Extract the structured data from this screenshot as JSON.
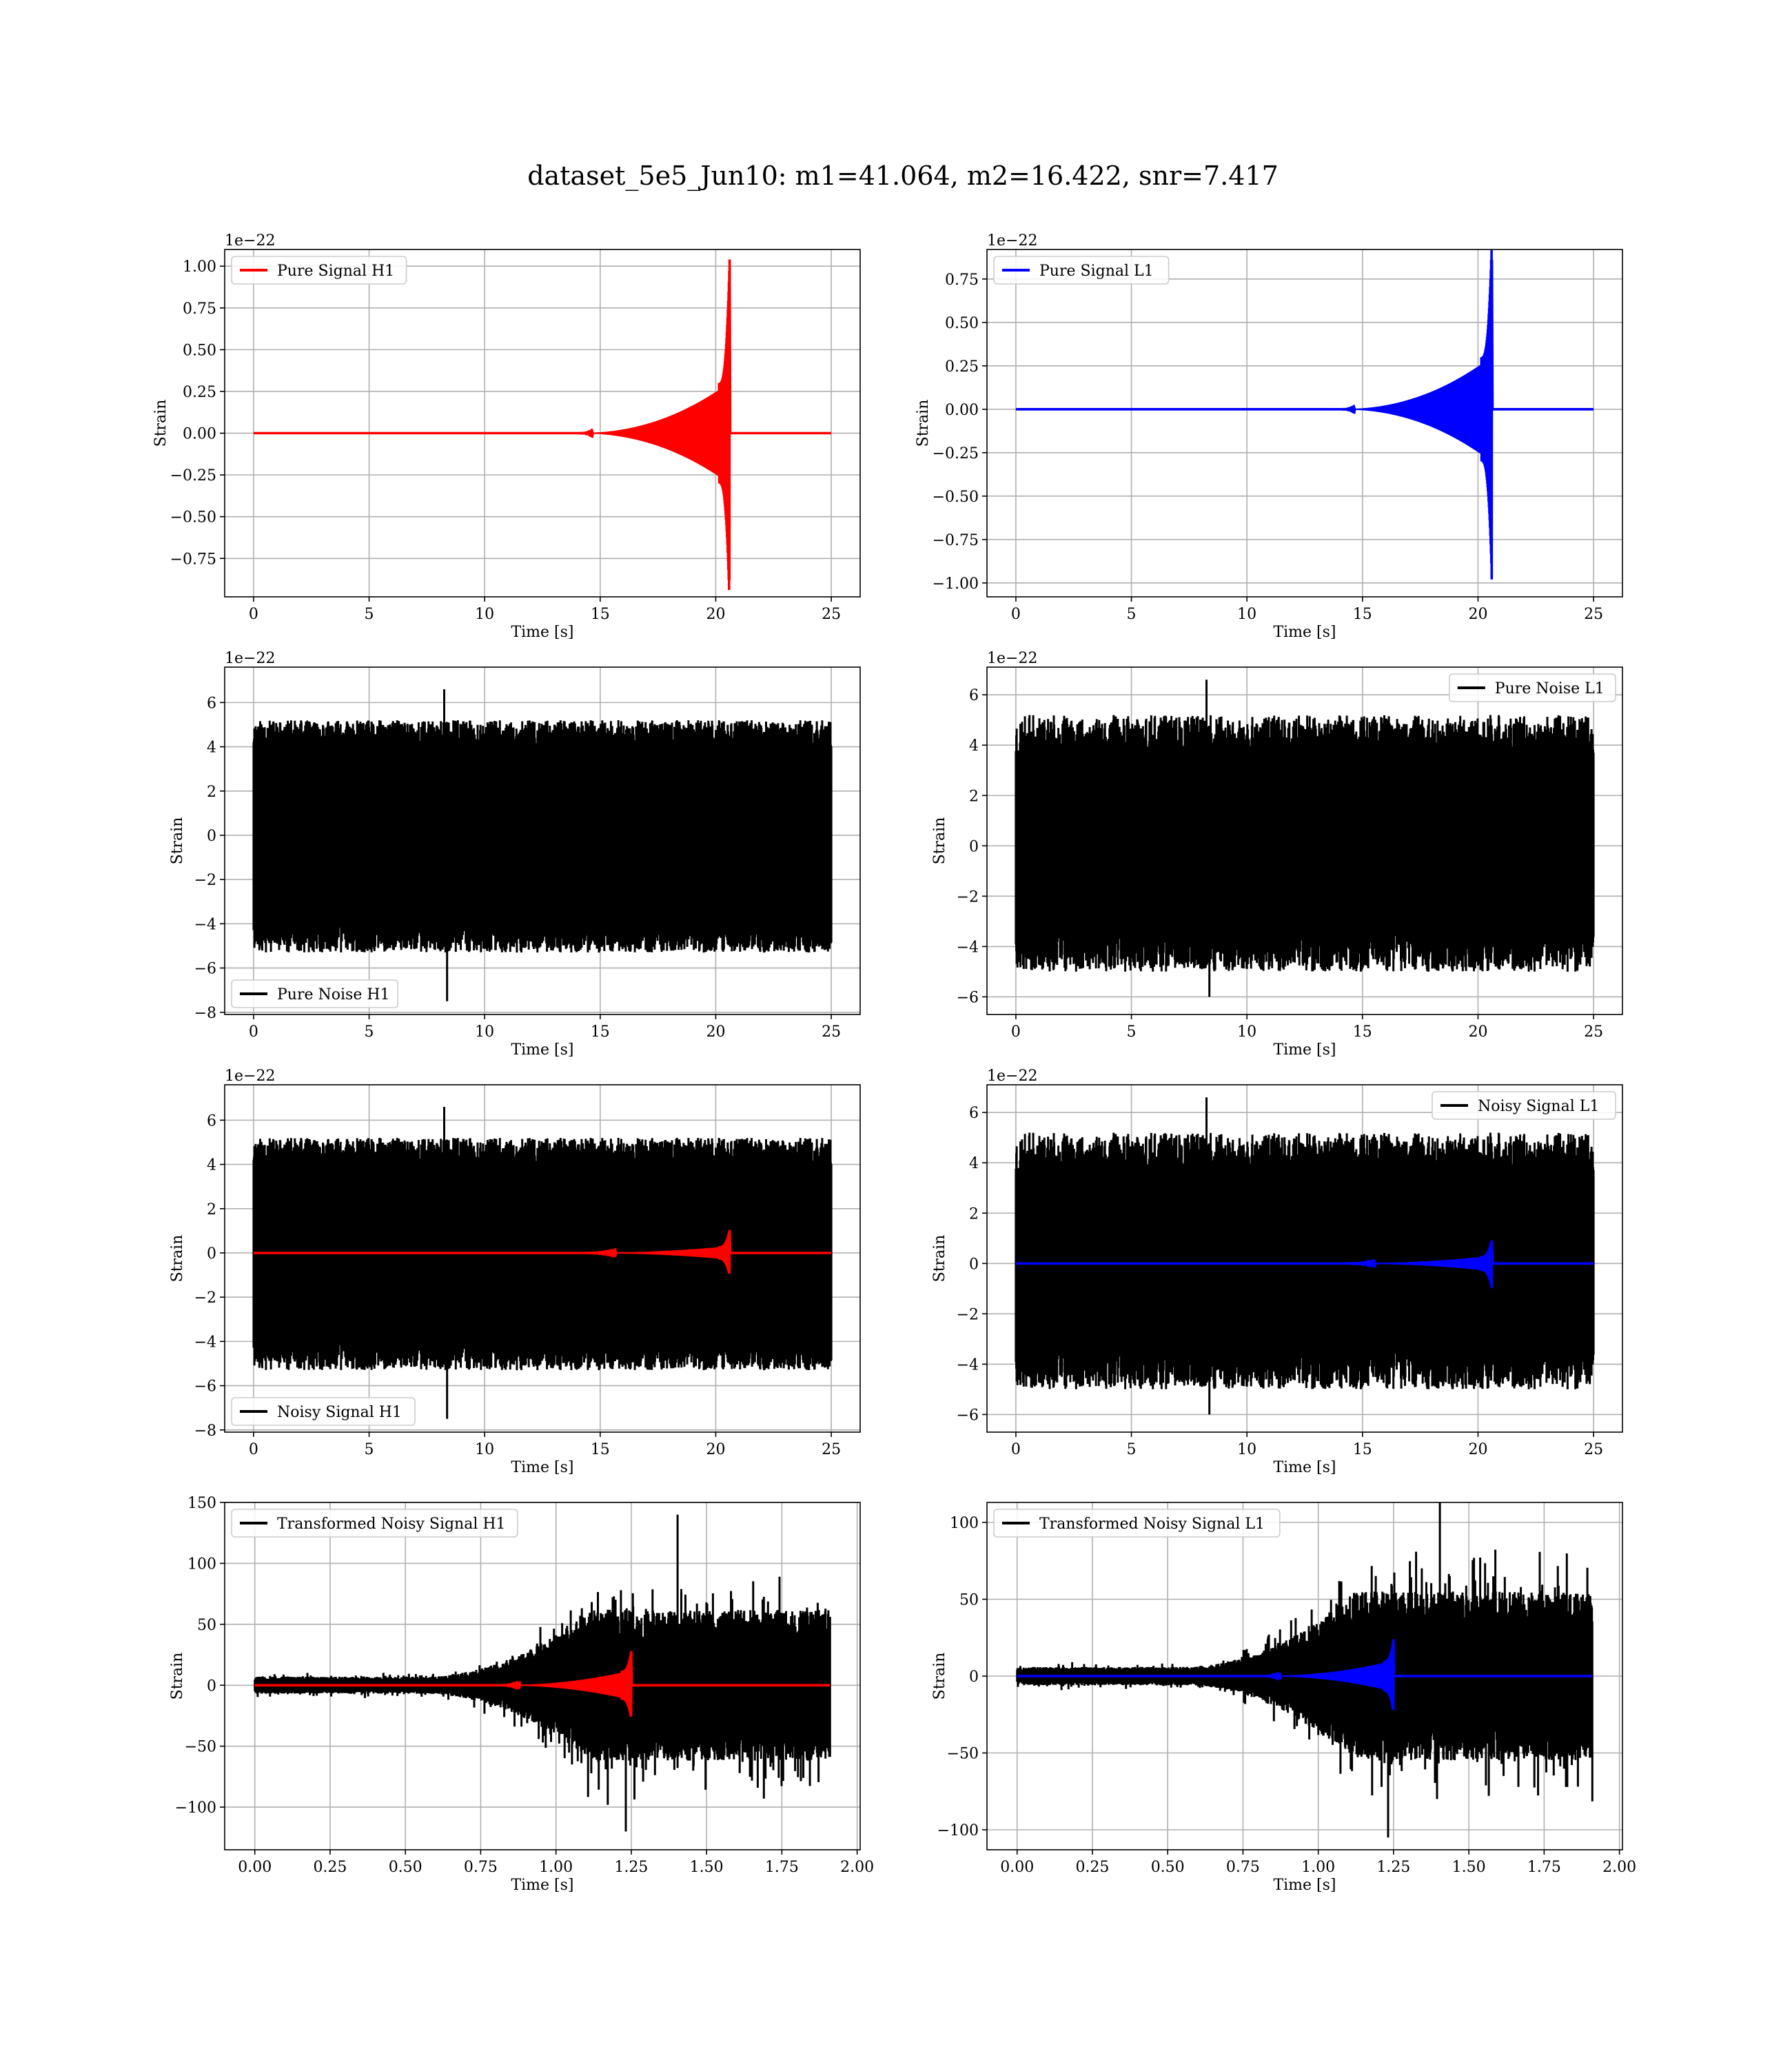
{
  "title": "dataset_5e5_Jun10: m1=41.064, m2=16.422, snr=7.417",
  "colors": {
    "h1_signal": "#ff0000",
    "l1_signal": "#0000ff",
    "noise": "#000000",
    "grid": "#b0b0b0"
  },
  "chart_data": [
    {
      "id": "pure-signal-h1",
      "type": "line",
      "grid": true,
      "legend_placement": "upper left",
      "xlabel": "Time [s]",
      "ylabel": "Strain",
      "y_offset_label": "1e−22",
      "xlim": [
        -1.25,
        26.25
      ],
      "ylim": [
        -0.98,
        1.1
      ],
      "xticks": [
        0,
        5,
        10,
        15,
        20,
        25
      ],
      "xtick_labels": [
        "0",
        "5",
        "10",
        "15",
        "20",
        "25"
      ],
      "yticks": [
        -0.75,
        -0.5,
        -0.25,
        0.0,
        0.25,
        0.5,
        0.75,
        1.0
      ],
      "ytick_labels": [
        "−0.75",
        "−0.50",
        "−0.25",
        "0.00",
        "0.25",
        "0.50",
        "0.75",
        "1.00"
      ],
      "series": [
        {
          "name": "Pure Signal H1",
          "color": "#ff0000",
          "kind": "chirp",
          "t_end": 25,
          "merger_time": 20.6,
          "chirp_start": 14,
          "x_start": 0,
          "peak_pos": 1.04,
          "peak_neg": -0.88,
          "pre_merger_amp": 0.3
        }
      ]
    },
    {
      "id": "pure-signal-l1",
      "type": "line",
      "grid": true,
      "legend_placement": "upper left",
      "xlabel": "Time [s]",
      "ylabel": "Strain",
      "y_offset_label": "1e−22",
      "xlim": [
        -1.25,
        26.25
      ],
      "ylim": [
        -1.08,
        0.92
      ],
      "xticks": [
        0,
        5,
        10,
        15,
        20,
        25
      ],
      "xtick_labels": [
        "0",
        "5",
        "10",
        "15",
        "20",
        "25"
      ],
      "yticks": [
        -1.0,
        -0.75,
        -0.5,
        -0.25,
        0.0,
        0.25,
        0.5,
        0.75
      ],
      "ytick_labels": [
        "−1.00",
        "−0.75",
        "−0.50",
        "−0.25",
        "0.00",
        "0.25",
        "0.50",
        "0.75"
      ],
      "series": [
        {
          "name": "Pure Signal L1",
          "color": "#0000ff",
          "kind": "chirp",
          "t_end": 25,
          "merger_time": 20.6,
          "chirp_start": 14,
          "x_start": 0,
          "peak_pos": 0.86,
          "peak_neg": -0.98,
          "pre_merger_amp": 0.3
        }
      ]
    },
    {
      "id": "pure-noise-h1",
      "type": "line",
      "grid": true,
      "legend_placement": "lower left",
      "xlabel": "Time [s]",
      "ylabel": "Strain",
      "y_offset_label": "1e−22",
      "xlim": [
        -1.25,
        26.25
      ],
      "ylim": [
        -8.1,
        7.6
      ],
      "xticks": [
        0,
        5,
        10,
        15,
        20,
        25
      ],
      "xtick_labels": [
        "0",
        "5",
        "10",
        "15",
        "20",
        "25"
      ],
      "yticks": [
        -8,
        -6,
        -4,
        -2,
        0,
        2,
        4,
        6
      ],
      "ytick_labels": [
        "−8",
        "−6",
        "−4",
        "−2",
        "0",
        "2",
        "4",
        "6"
      ],
      "series": [
        {
          "name": "Pure Noise H1",
          "color": "#000000",
          "kind": "noise",
          "t_end": 25,
          "x_start": 0,
          "band": 3.9,
          "spike_pos": 5.2,
          "spike_neg": -5.3,
          "max": 6.6,
          "min": -7.5,
          "seed": 11
        }
      ]
    },
    {
      "id": "pure-noise-l1",
      "type": "line",
      "grid": true,
      "legend_placement": "upper right",
      "xlabel": "Time [s]",
      "ylabel": "Strain",
      "y_offset_label": "1e−22",
      "xlim": [
        -1.25,
        26.25
      ],
      "ylim": [
        -6.7,
        7.1
      ],
      "xticks": [
        0,
        5,
        10,
        15,
        20,
        25
      ],
      "xtick_labels": [
        "0",
        "5",
        "10",
        "15",
        "20",
        "25"
      ],
      "yticks": [
        -6,
        -4,
        -2,
        0,
        2,
        4,
        6
      ],
      "ytick_labels": [
        "−6",
        "−4",
        "−2",
        "0",
        "2",
        "4",
        "6"
      ],
      "series": [
        {
          "name": "Pure Noise L1",
          "color": "#000000",
          "kind": "noise",
          "t_end": 25,
          "x_start": 0,
          "band": 3.3,
          "spike_pos": 5.2,
          "spike_neg": -5.0,
          "max": 6.6,
          "min": -6.0,
          "seed": 23
        }
      ]
    },
    {
      "id": "noisy-signal-h1",
      "type": "line",
      "grid": true,
      "legend_placement": "lower left",
      "xlabel": "Time [s]",
      "ylabel": "Strain",
      "y_offset_label": "1e−22",
      "xlim": [
        -1.25,
        26.25
      ],
      "ylim": [
        -8.1,
        7.6
      ],
      "xticks": [
        0,
        5,
        10,
        15,
        20,
        25
      ],
      "xtick_labels": [
        "0",
        "5",
        "10",
        "15",
        "20",
        "25"
      ],
      "yticks": [
        -8,
        -6,
        -4,
        -2,
        0,
        2,
        4,
        6
      ],
      "ytick_labels": [
        "−8",
        "−6",
        "−4",
        "−2",
        "0",
        "2",
        "4",
        "6"
      ],
      "series": [
        {
          "name": "Noisy Signal H1",
          "color": "#000000",
          "kind": "noise",
          "t_end": 25,
          "x_start": 0,
          "band": 3.9,
          "spike_pos": 5.2,
          "spike_neg": -5.3,
          "max": 6.6,
          "min": -7.5,
          "seed": 11
        },
        {
          "color": "#ff0000",
          "kind": "chirp",
          "t_end": 25,
          "merger_time": 20.6,
          "chirp_start": 14,
          "x_start": 0,
          "peak_pos": 1.04,
          "peak_neg": -0.88,
          "pre_merger_amp": 0.3
        }
      ]
    },
    {
      "id": "noisy-signal-l1",
      "type": "line",
      "grid": true,
      "legend_placement": "upper right",
      "xlabel": "Time [s]",
      "ylabel": "Strain",
      "y_offset_label": "1e−22",
      "xlim": [
        -1.25,
        26.25
      ],
      "ylim": [
        -6.7,
        7.1
      ],
      "xticks": [
        0,
        5,
        10,
        15,
        20,
        25
      ],
      "xtick_labels": [
        "0",
        "5",
        "10",
        "15",
        "20",
        "25"
      ],
      "yticks": [
        -6,
        -4,
        -2,
        0,
        2,
        4,
        6
      ],
      "ytick_labels": [
        "−6",
        "−4",
        "−2",
        "0",
        "2",
        "4",
        "6"
      ],
      "series": [
        {
          "name": "Noisy Signal L1",
          "color": "#000000",
          "kind": "noise",
          "t_end": 25,
          "x_start": 0,
          "band": 3.3,
          "spike_pos": 5.2,
          "spike_neg": -5.0,
          "max": 6.6,
          "min": -6.0,
          "seed": 23
        },
        {
          "color": "#0000ff",
          "kind": "chirp",
          "t_end": 25,
          "merger_time": 20.6,
          "chirp_start": 14,
          "x_start": 0,
          "peak_pos": 0.86,
          "peak_neg": -0.98,
          "pre_merger_amp": 0.3
        }
      ]
    },
    {
      "id": "transformed-noisy-signal-h1",
      "type": "line",
      "grid": true,
      "legend_placement": "upper left",
      "xlabel": "Time [s]",
      "ylabel": "Strain",
      "y_offset_label": "",
      "xlim": [
        -0.1,
        2.01
      ],
      "ylim": [
        -135,
        150
      ],
      "xticks": [
        0.0,
        0.25,
        0.5,
        0.75,
        1.0,
        1.25,
        1.5,
        1.75,
        2.0
      ],
      "xtick_labels": [
        "0.00",
        "0.25",
        "0.50",
        "0.75",
        "1.00",
        "1.25",
        "1.50",
        "1.75",
        "2.00"
      ],
      "yticks": [
        -100,
        -50,
        0,
        50,
        100,
        150
      ],
      "ytick_labels": [
        "−100",
        "−50",
        "0",
        "50",
        "100",
        "150"
      ],
      "series": [
        {
          "name": "Transformed Noisy Signal H1",
          "color": "#000000",
          "kind": "tnoise",
          "t_end": 1.91,
          "x_start": 0,
          "ramp_start": 0.55,
          "ramp_end": 1.12,
          "band_low": 7,
          "band_high": 62,
          "max": 140,
          "min": -120,
          "seed": 37
        },
        {
          "color": "#ff0000",
          "kind": "chirp",
          "t_end": 1.91,
          "merger_time": 1.25,
          "chirp_start": 0.8,
          "x_start": 0,
          "peak_pos": 28,
          "peak_neg": -25,
          "pre_merger_amp": 12
        }
      ]
    },
    {
      "id": "transformed-noisy-signal-l1",
      "type": "line",
      "grid": true,
      "legend_placement": "upper left",
      "xlabel": "Time [s]",
      "ylabel": "Strain",
      "y_offset_label": "",
      "xlim": [
        -0.1,
        2.01
      ],
      "ylim": [
        -113,
        113
      ],
      "xticks": [
        0.0,
        0.25,
        0.5,
        0.75,
        1.0,
        1.25,
        1.5,
        1.75,
        2.0
      ],
      "xtick_labels": [
        "0.00",
        "0.25",
        "0.50",
        "0.75",
        "1.00",
        "1.25",
        "1.50",
        "1.75",
        "2.00"
      ],
      "yticks": [
        -100,
        -50,
        0,
        50,
        100
      ],
      "ytick_labels": [
        "−100",
        "−50",
        "0",
        "50",
        "100"
      ],
      "series": [
        {
          "name": "Transformed Noisy Signal L1",
          "color": "#000000",
          "kind": "tnoise",
          "t_end": 1.91,
          "x_start": 0,
          "ramp_start": 0.55,
          "ramp_end": 1.12,
          "band_low": 6,
          "band_high": 55,
          "max": 120,
          "min": -105,
          "seed": 53
        },
        {
          "color": "#0000ff",
          "kind": "chirp",
          "t_end": 1.91,
          "merger_time": 1.25,
          "chirp_start": 0.8,
          "x_start": 0,
          "peak_pos": 24,
          "peak_neg": -22,
          "pre_merger_amp": 10
        }
      ]
    }
  ]
}
